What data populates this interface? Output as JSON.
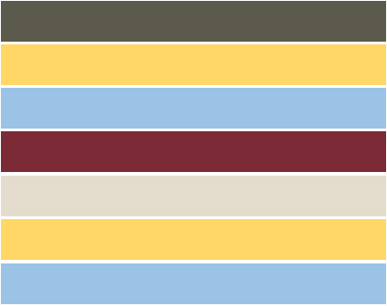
{
  "palette": {
    "stripes": [
      {
        "color": "#5C5A4C"
      },
      {
        "color": "#FFD766"
      },
      {
        "color": "#9BC3E6"
      },
      {
        "color": "#7C2A35"
      },
      {
        "color": "#E4DDCE"
      },
      {
        "color": "#FFD766"
      },
      {
        "color": "#9BC3E6"
      }
    ]
  }
}
